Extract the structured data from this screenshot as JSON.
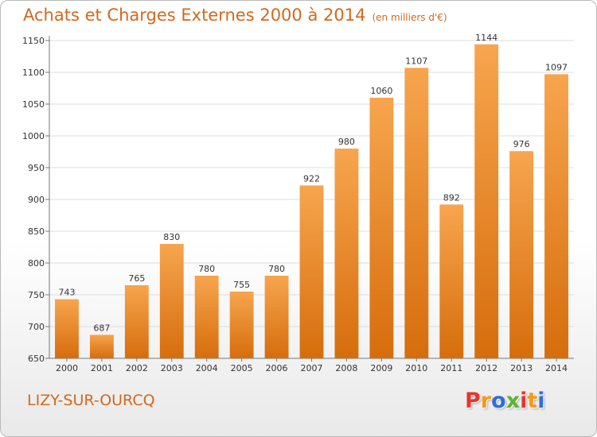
{
  "header": {
    "title": "Achats et Charges Externes 2000 à 2014",
    "subtitle": "(en milliers d'€)"
  },
  "footer": {
    "place": "LIZY-SUR-OURCQ",
    "brand_letters": [
      "P",
      "r",
      "o",
      "x",
      "i",
      "t",
      "i"
    ],
    "brand_colors": [
      "#e8352b",
      "#f39a1d",
      "#2e6fd8",
      "#5cb531",
      "#e8352b",
      "#f39a1d",
      "#2e6fd8"
    ]
  },
  "chart_data": {
    "type": "bar",
    "categories": [
      "2000",
      "2001",
      "2002",
      "2003",
      "2004",
      "2005",
      "2006",
      "2007",
      "2008",
      "2009",
      "2010",
      "2011",
      "2012",
      "2013",
      "2014"
    ],
    "values": [
      743,
      687,
      765,
      830,
      780,
      755,
      780,
      922,
      980,
      1060,
      1107,
      892,
      1144,
      976,
      1097
    ],
    "ylim": [
      650,
      1150
    ],
    "yticks": [
      650,
      700,
      750,
      800,
      850,
      900,
      950,
      1000,
      1050,
      1100,
      1150
    ],
    "grid": true,
    "bar_color_light": "#f7a54e",
    "bar_color_dark": "#d66d0c"
  }
}
